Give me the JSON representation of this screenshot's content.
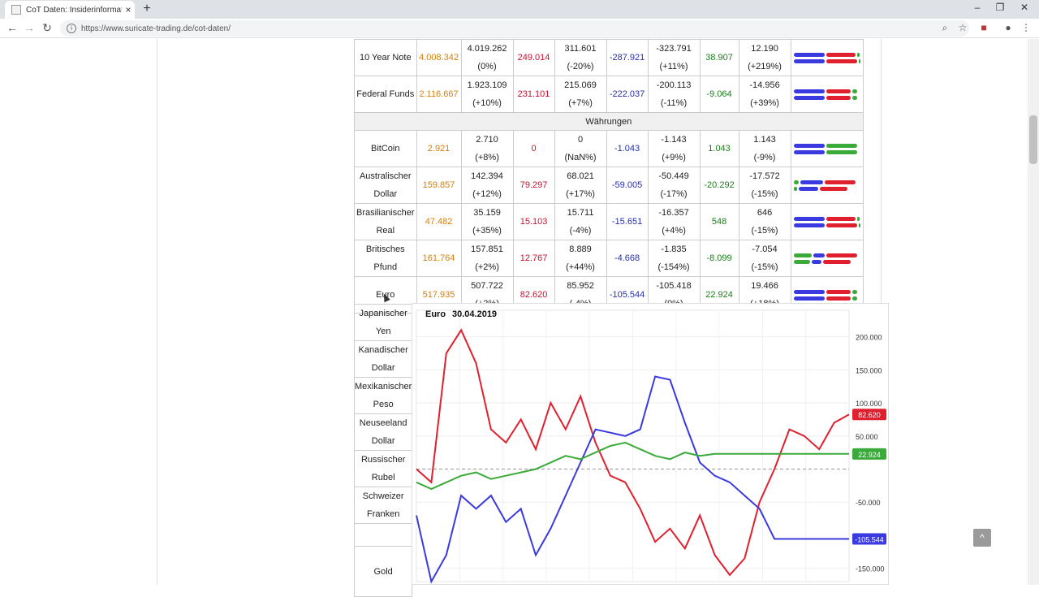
{
  "browser": {
    "tab_title": "CoT Daten: Insiderinformationen",
    "tab_close": "×",
    "new_tab": "+",
    "url": "https://www.suricate-trading.de/cot-daten/",
    "win_min": "–",
    "win_restore": "❐",
    "win_close": "✕"
  },
  "colors": {
    "orange": "#d4800b",
    "red": "#c8102e",
    "blue": "#2630a8",
    "green": "#1a7f1a"
  },
  "table": {
    "rows_top": [
      {
        "name": "10 Year Note",
        "open_interest": "4.008.342",
        "v1": "4.019.262",
        "v1p": "(0%)",
        "long": "249.014",
        "v2": "311.601",
        "v2p": "(-20%)",
        "net1": "-287.921",
        "v3": "-323.791",
        "v3p": "(+11%)",
        "net2": "38.907",
        "v4": "12.190",
        "v4p": "(+219%)"
      },
      {
        "name": "Federal Funds",
        "open_interest": "2.116.667",
        "v1": "1.923.109",
        "v1p": "(+10%)",
        "long": "231.101",
        "v2": "215.069",
        "v2p": "(+7%)",
        "net1": "-222.037",
        "v3": "-200.113",
        "v3p": "(-11%)",
        "net2": "-9.064",
        "v4": "-14.956",
        "v4p": "(+39%)"
      }
    ],
    "section": "Währungen",
    "rows": [
      {
        "name1": "BitCoin",
        "name2": "",
        "open_interest": "2.921",
        "v1": "2.710",
        "v1p": "(+8%)",
        "long": "0",
        "v2": "0",
        "v2p": "(NaN%)",
        "net1": "-1.043",
        "v3": "-1.143",
        "v3p": "(+9%)",
        "net2": "1.043",
        "v4": "1.143",
        "v4p": "(-9%)"
      },
      {
        "name1": "Australischer",
        "name2": "Dollar",
        "open_interest": "159.857",
        "v1": "142.394",
        "v1p": "(+12%)",
        "long": "79.297",
        "v2": "68.021",
        "v2p": "(+17%)",
        "net1": "-59.005",
        "v3": "-50.449",
        "v3p": "(-17%)",
        "net2": "-20.292",
        "v4": "-17.572",
        "v4p": "(-15%)"
      },
      {
        "name1": "Brasilianischer",
        "name2": "Real",
        "open_interest": "47.482",
        "v1": "35.159",
        "v1p": "(+35%)",
        "long": "15.103",
        "v2": "15.711",
        "v2p": "(-4%)",
        "net1": "-15.651",
        "v3": "-16.357",
        "v3p": "(+4%)",
        "net2": "548",
        "v4": "646",
        "v4p": "(-15%)"
      },
      {
        "name1": "Britisches",
        "name2": "Pfund",
        "open_interest": "161.764",
        "v1": "157.851",
        "v1p": "(+2%)",
        "long": "12.767",
        "v2": "8.889",
        "v2p": "(+44%)",
        "net1": "-4.668",
        "v3": "-1.835",
        "v3p": "(-154%)",
        "net2": "-8.099",
        "v4": "-7.054",
        "v4p": "(-15%)"
      },
      {
        "name1": "Euro",
        "name2": "",
        "open_interest": "517.935",
        "v1": "507.722",
        "v1p": "(+2%)",
        "long": "82.620",
        "v2": "85.952",
        "v2p": "(-4%)",
        "net1": "-105.544",
        "v3": "-105.418",
        "v3p": "(0%)",
        "net2": "22.924",
        "v4": "19.466",
        "v4p": "(+18%)"
      }
    ],
    "side_rows": [
      {
        "l1": "Japanischer",
        "l2": "Yen"
      },
      {
        "l1": "Kanadischer",
        "l2": "Dollar"
      },
      {
        "l1": "Mexikanischer",
        "l2": "Peso"
      },
      {
        "l1": "Neuseeland",
        "l2": "Dollar"
      },
      {
        "l1": "Russischer",
        "l2": "Rubel"
      },
      {
        "l1": "Schweizer",
        "l2": "Franken"
      },
      {
        "l1": "",
        "l2": ""
      },
      {
        "l1": "Gold",
        "l2": ""
      }
    ]
  },
  "chart_data": {
    "type": "line",
    "title": "Euro",
    "subtitle": "30.04.2019",
    "ylim": [
      -170000,
      240000
    ],
    "y_ticks": [
      "200.000",
      "150.000",
      "100.000",
      "50.000",
      "-50.000",
      "-150.000"
    ],
    "series": [
      {
        "color": "#e0202e",
        "last_label": "82.620",
        "values": [
          0,
          -20000,
          175000,
          210000,
          160000,
          60000,
          40000,
          75000,
          30000,
          100000,
          60000,
          110000,
          40000,
          -10000,
          -20000,
          -60000,
          -110000,
          -90000,
          -120000,
          -70000,
          -130000,
          -160000,
          -135000,
          -50000,
          0,
          60000,
          50000,
          30000,
          70000,
          82620
        ]
      },
      {
        "color": "#3a3ae0",
        "last_label": "-105.544",
        "values": [
          -70000,
          -170000,
          -130000,
          -40000,
          -60000,
          -40000,
          -80000,
          -60000,
          -130000,
          -90000,
          -40000,
          10000,
          60000,
          55000,
          50000,
          60000,
          140000,
          135000,
          70000,
          10000,
          -10000,
          -20000,
          -40000,
          -60000,
          -105544,
          -105544,
          -105544,
          -105544,
          -105544,
          -105544
        ]
      },
      {
        "color": "#3aaa3a",
        "last_label": "22.924",
        "values": [
          -20000,
          -30000,
          -20000,
          -10000,
          -5000,
          -15000,
          -10000,
          -5000,
          0,
          10000,
          20000,
          15000,
          25000,
          35000,
          40000,
          30000,
          20000,
          15000,
          25000,
          20000,
          22924,
          22924,
          22924,
          22924,
          22924,
          22924,
          22924,
          22924,
          22924,
          22924
        ]
      }
    ]
  },
  "scroll_top": "^"
}
